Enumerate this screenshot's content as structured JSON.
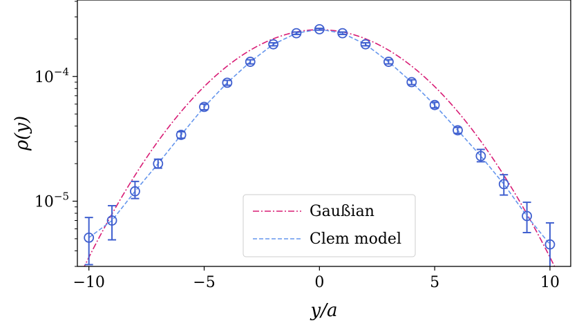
{
  "chart_data": {
    "type": "scatter",
    "xlabel": "y/a",
    "ylabel": "ρ(y)",
    "xlim": [
      -10.5,
      10.9
    ],
    "ylim": [
      3e-06,
      0.00041
    ],
    "yscale": "log",
    "grid": false,
    "legend_position": "lower-center",
    "x_ticks": [
      {
        "value": -10,
        "label": "−10"
      },
      {
        "value": -5,
        "label": "−5"
      },
      {
        "value": 0,
        "label": "0"
      },
      {
        "value": 5,
        "label": "5"
      },
      {
        "value": 10,
        "label": "10"
      }
    ],
    "y_ticks": [
      {
        "value": 1e-05,
        "base": "10",
        "exp": "−5"
      },
      {
        "value": 0.0001,
        "base": "10",
        "exp": "−4"
      }
    ],
    "data_points": {
      "x": [
        -10,
        -9,
        -8,
        -7,
        -6,
        -5,
        -4,
        -3,
        -2,
        -1,
        0,
        1,
        2,
        3,
        4,
        5,
        6,
        7,
        8,
        9,
        10
      ],
      "y": [
        5.1e-06,
        7e-06,
        1.2e-05,
        2e-05,
        3.4e-05,
        5.7e-05,
        8.9e-05,
        0.000131,
        0.000181,
        0.000222,
        0.000239,
        0.000222,
        0.000181,
        0.000131,
        9e-05,
        5.9e-05,
        3.7e-05,
        2.3e-05,
        1.37e-05,
        7.6e-06,
        4.5e-06
      ],
      "err_low": [
        2e-06,
        2.1e-06,
        1.5e-06,
        1.6e-06,
        2e-06,
        3e-06,
        4e-06,
        5e-06,
        5e-06,
        5e-06,
        4e-06,
        5e-06,
        5e-06,
        5e-06,
        4e-06,
        3e-06,
        2e-06,
        2.3e-06,
        2.5e-06,
        2e-06,
        1.8e-06
      ],
      "err_high": [
        2.3e-06,
        2.2e-06,
        2.4e-06,
        1.7e-06,
        2e-06,
        3e-06,
        4e-06,
        5e-06,
        5e-06,
        5e-06,
        4e-06,
        5e-06,
        5e-06,
        5e-06,
        4e-06,
        3e-06,
        2e-06,
        3e-06,
        2.6e-06,
        2.2e-06,
        2.2e-06
      ],
      "color": "#3f5fcf"
    },
    "series": [
      {
        "name": "Gaußian",
        "style": "dash-dot",
        "color": "#d81b74",
        "peak": 0.000237,
        "sigma": 3.45
      },
      {
        "name": "Clem model",
        "style": "dashed",
        "color": "#6495ed"
      }
    ]
  }
}
